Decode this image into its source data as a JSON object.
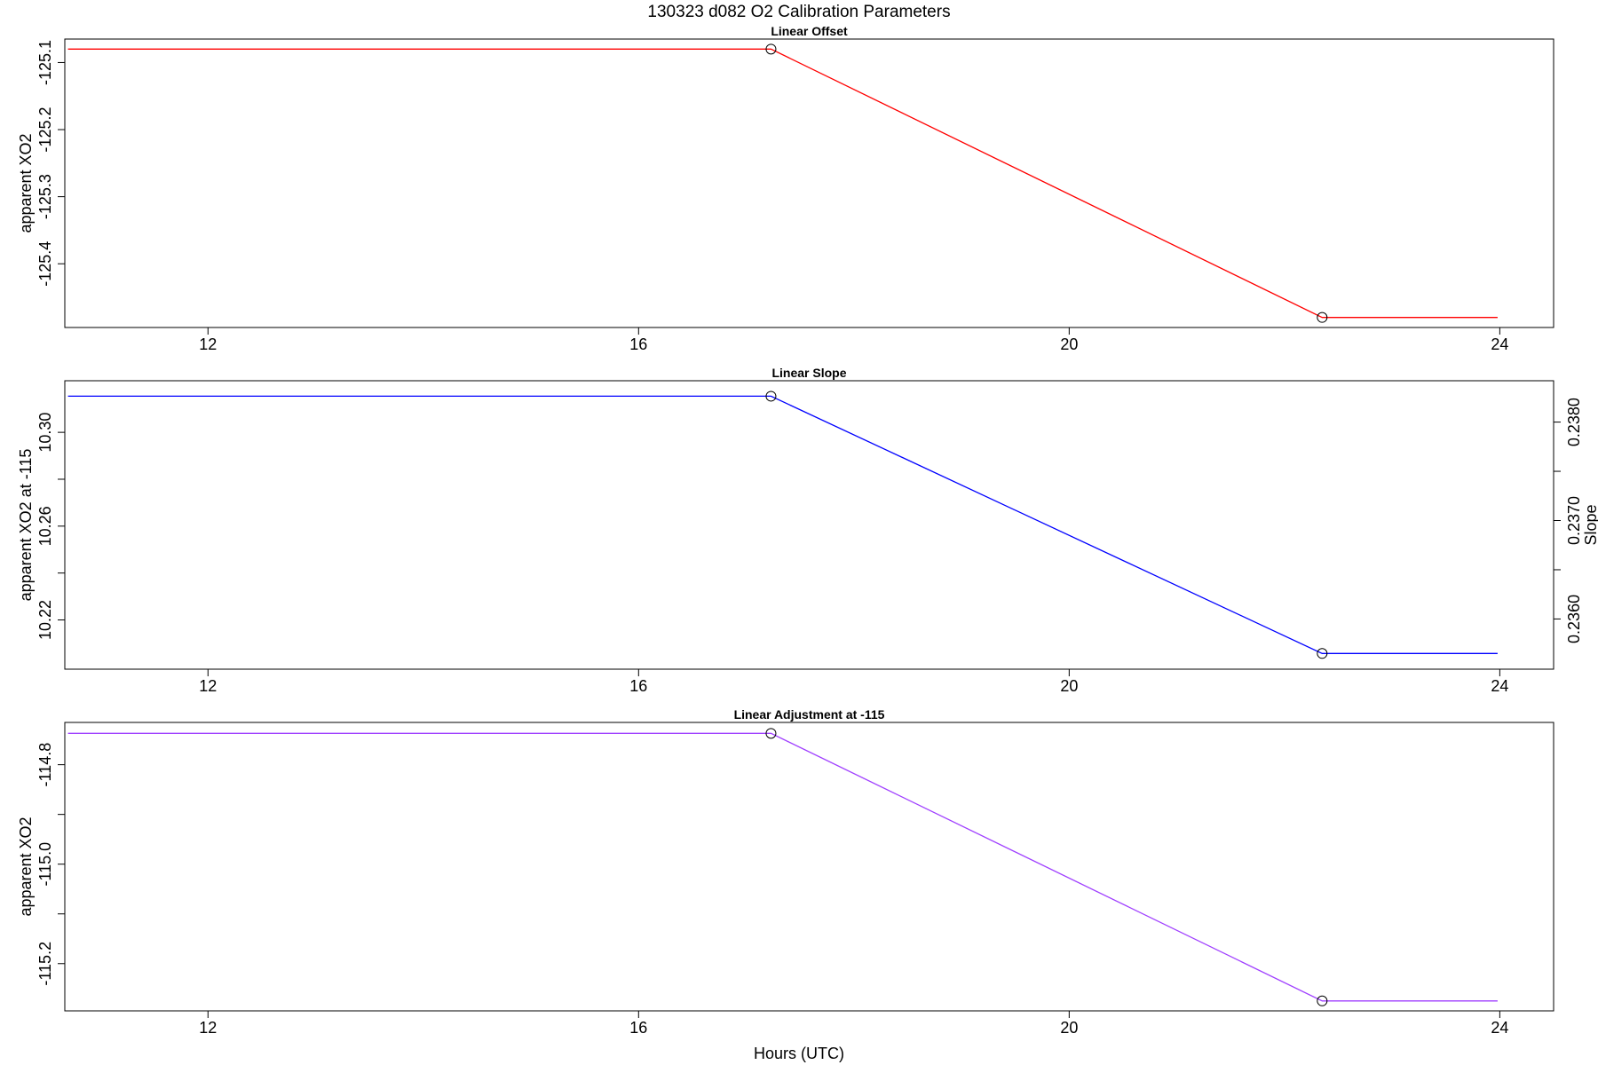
{
  "figure": {
    "title": "130323   d082   O2 Calibration Parameters",
    "xlabel": "Hours (UTC)"
  },
  "chart_data": [
    {
      "type": "line",
      "title": "Linear Offset",
      "xlabel": "",
      "ylabel": "apparent XO2",
      "color": "#ff0000",
      "xlim": [
        10.67,
        24.5
      ],
      "ylim": [
        -125.495,
        -125.065
      ],
      "xticks": [
        12,
        16,
        20,
        24
      ],
      "xtick_labels": [
        "12",
        "16",
        "20",
        "24"
      ],
      "yticks": [
        -125.1,
        -125.2,
        -125.3,
        -125.4
      ],
      "ytick_labels": [
        "-125.1",
        "-125.2",
        "-125.3",
        "-125.4"
      ],
      "series": [
        {
          "x": [
            10.7,
            17.23,
            22.35,
            23.98
          ],
          "y": [
            -125.08,
            -125.08,
            -125.48,
            -125.48
          ],
          "markers": [
            1,
            2
          ]
        }
      ]
    },
    {
      "type": "line",
      "title": "Linear Slope",
      "xlabel": "",
      "ylabel": "apparent XO2 at -115",
      "y2label": "Slope",
      "color": "#0000ff",
      "xlim": [
        10.67,
        24.5
      ],
      "ylim": [
        10.199,
        10.322
      ],
      "xticks": [
        12,
        16,
        20,
        24
      ],
      "xtick_labels": [
        "12",
        "16",
        "20",
        "24"
      ],
      "yticks": [
        10.3,
        10.28,
        10.26,
        10.24,
        10.22
      ],
      "ytick_labels": [
        "10.30",
        "",
        "10.26",
        "",
        "10.22"
      ],
      "y2lim": [
        0.23549,
        0.23842
      ],
      "y2ticks": [
        0.238,
        0.2375,
        0.237,
        0.2365,
        0.236
      ],
      "y2tick_labels": [
        "0.2380",
        "",
        "0.2370",
        "",
        "0.2360"
      ],
      "series": [
        {
          "x": [
            10.7,
            17.23,
            22.35,
            23.98
          ],
          "y": [
            10.3154,
            10.3154,
            10.2057,
            10.2057
          ],
          "markers": [
            1,
            2
          ]
        }
      ]
    },
    {
      "type": "line",
      "title": "Linear Adjustment at -115",
      "xlabel": "",
      "ylabel": "apparent XO2",
      "color": "#a040ff",
      "xlim": [
        10.67,
        24.5
      ],
      "ylim": [
        -115.295,
        -114.715
      ],
      "xticks": [
        12,
        16,
        20,
        24
      ],
      "xtick_labels": [
        "12",
        "16",
        "20",
        "24"
      ],
      "yticks": [
        -114.8,
        -114.9,
        -115.0,
        -115.1,
        -115.2
      ],
      "ytick_labels": [
        "-114.8",
        "",
        "-115.0",
        "",
        "-115.2"
      ],
      "series": [
        {
          "x": [
            10.7,
            17.23,
            22.35,
            23.98
          ],
          "y": [
            -114.737,
            -114.737,
            -115.275,
            -115.275
          ],
          "markers": [
            1,
            2
          ]
        }
      ]
    }
  ]
}
